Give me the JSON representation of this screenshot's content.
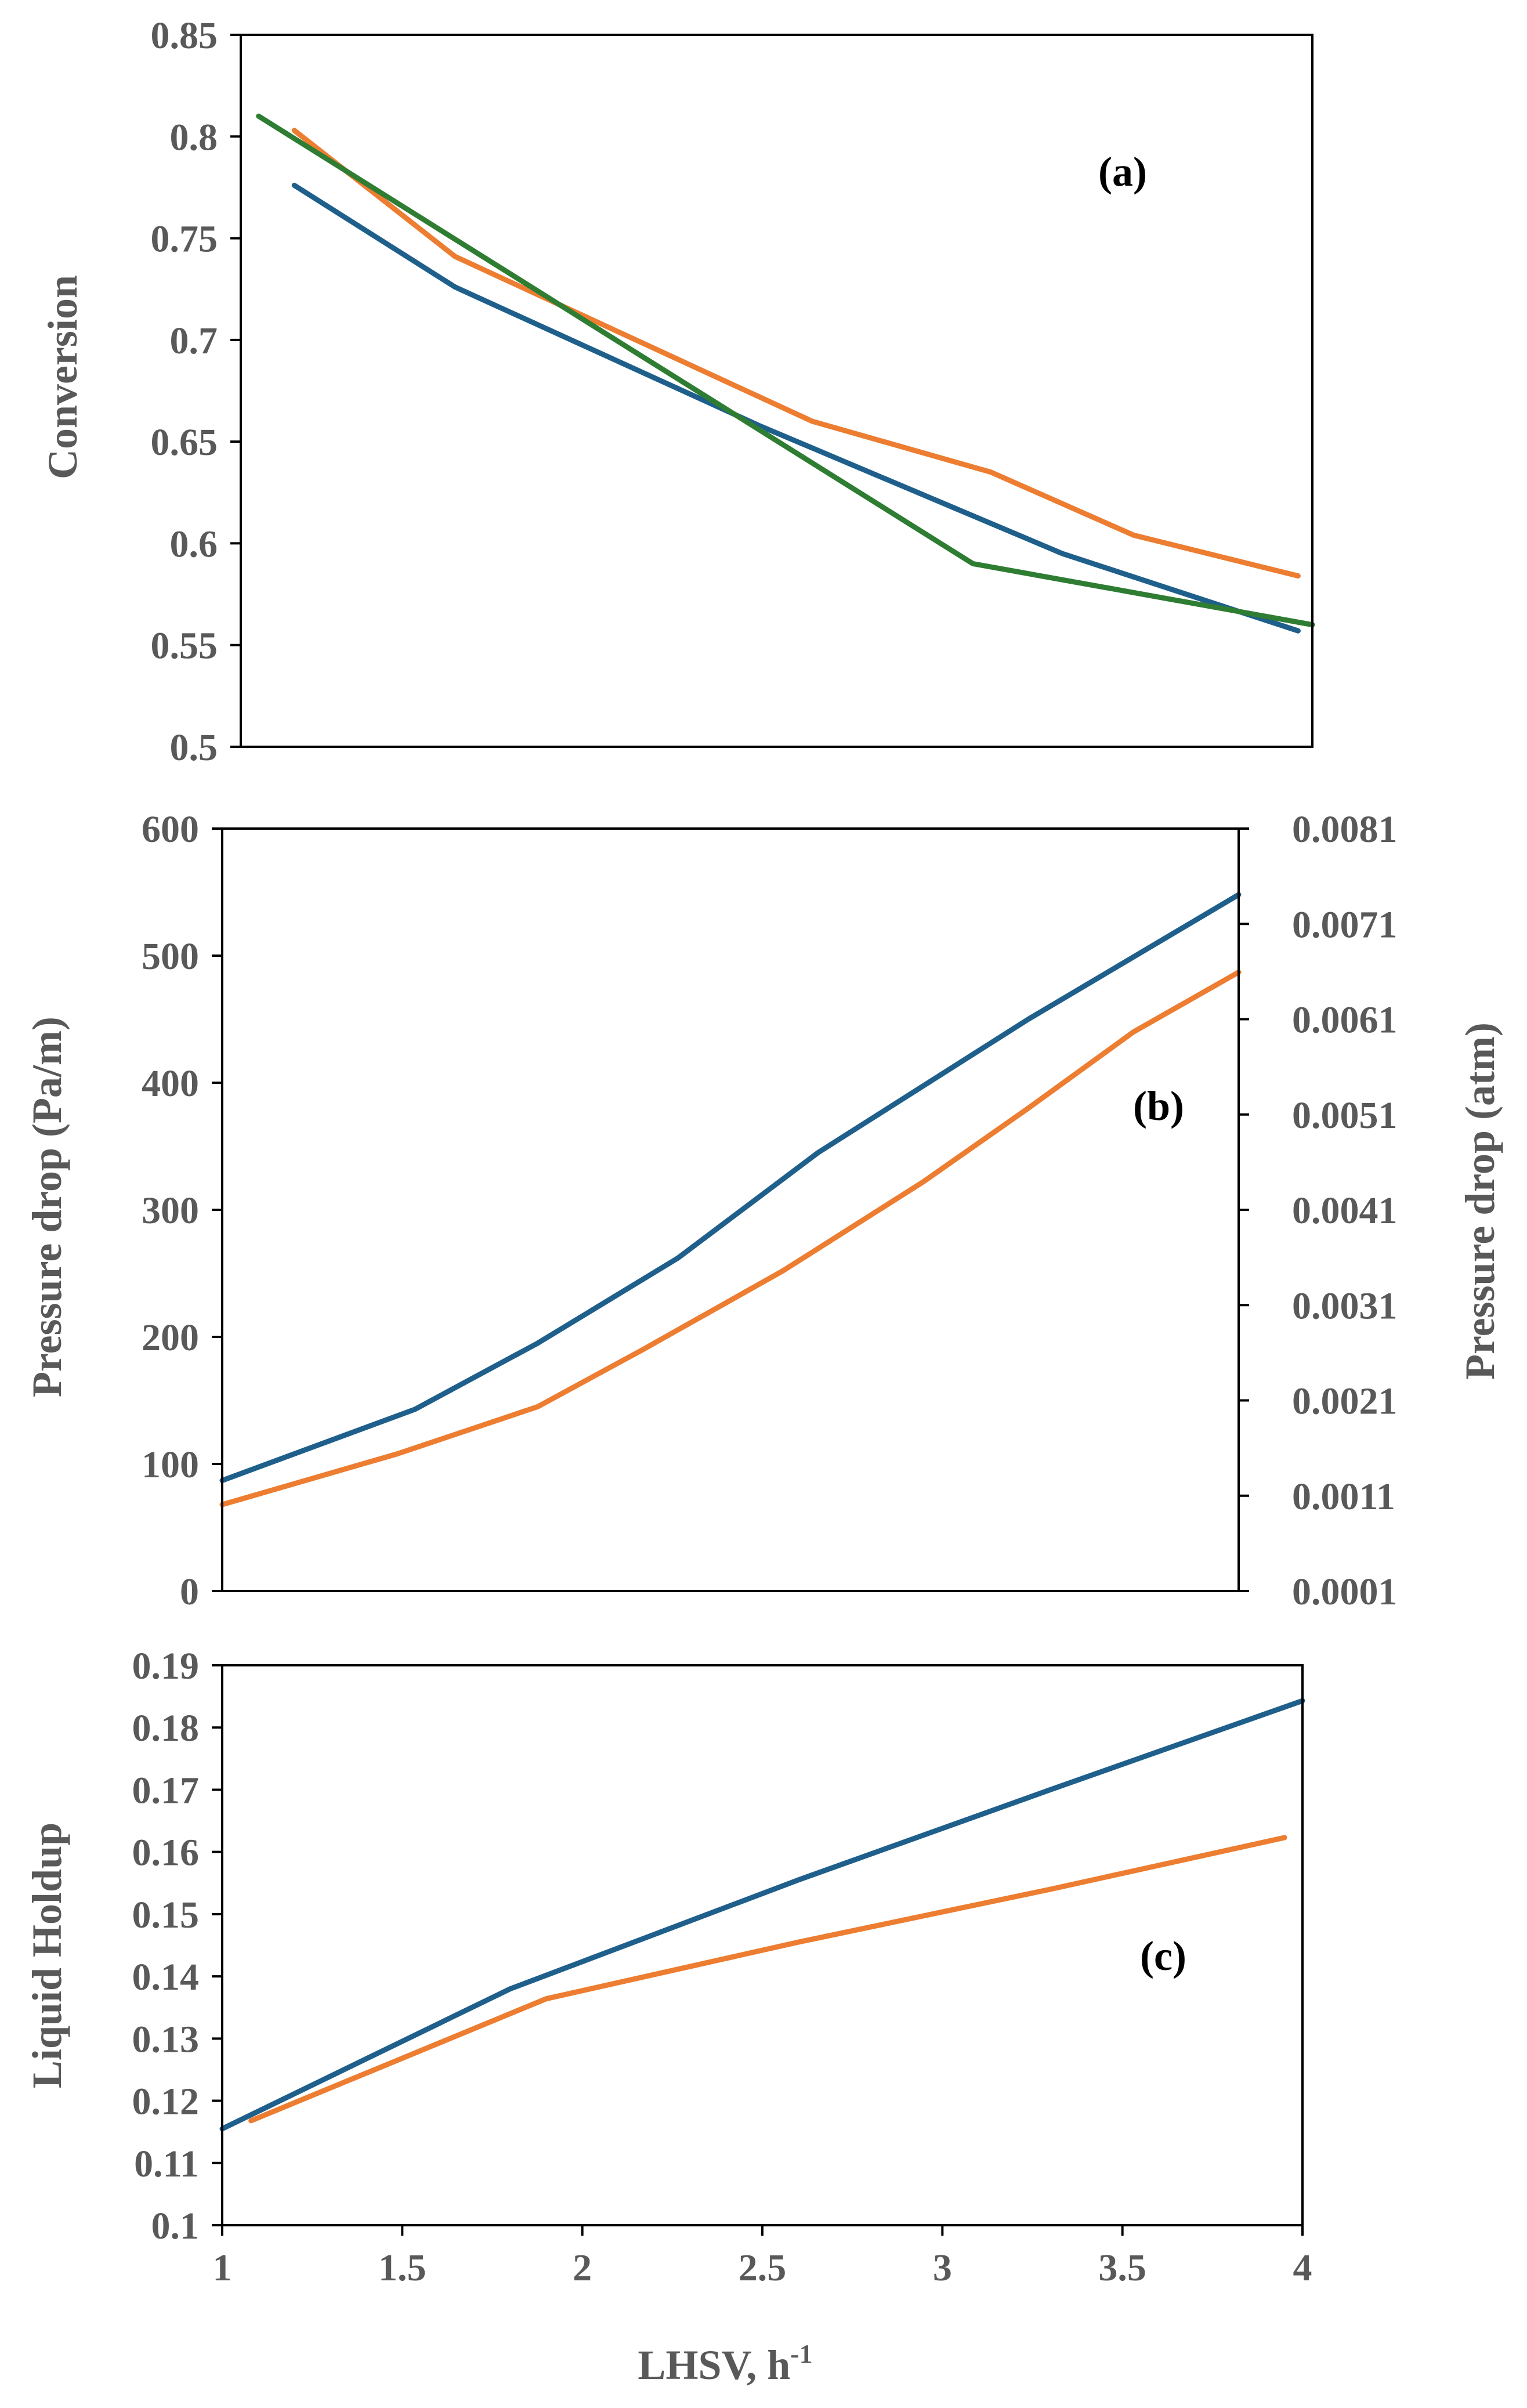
{
  "colors": {
    "blue": "#1f5f8b",
    "orange": "#ed7d31",
    "green": "#2e7d32",
    "axis_text": "#595959"
  },
  "chart_data": [
    {
      "type": "line",
      "panel_label": "(a)",
      "title": "",
      "xlabel": "",
      "ylabel": "Conversion",
      "xlim": [
        1,
        4
      ],
      "ylim": [
        0.5,
        0.85
      ],
      "y_ticks": [
        "0.5",
        "0.55",
        "0.6",
        "0.65",
        "0.7",
        "0.75",
        "0.8",
        "0.85"
      ],
      "x_tick_labels_shown": false,
      "series": [
        {
          "name": "series-1",
          "color": "#1f5f8b",
          "x": [
            1.15,
            1.6,
            2.45,
            3.3,
            3.96
          ],
          "y": [
            0.776,
            0.726,
            0.658,
            0.595,
            0.557
          ]
        },
        {
          "name": "series-2",
          "color": "#ed7d31",
          "x": [
            1.15,
            1.6,
            2.6,
            3.1,
            3.5,
            3.96
          ],
          "y": [
            0.803,
            0.741,
            0.66,
            0.635,
            0.604,
            0.584
          ]
        },
        {
          "name": "series-3",
          "color": "#2e7d32",
          "x": [
            1.05,
            3.05,
            4.0
          ],
          "y": [
            0.81,
            0.59,
            0.56
          ]
        }
      ]
    },
    {
      "type": "line",
      "panel_label": "(b)",
      "title": "",
      "xlabel": "",
      "ylabel": "Pressure drop (Pa/m)",
      "y2label": "Pressure drop (atm)",
      "xlim": [
        1,
        3.9
      ],
      "ylim": [
        0,
        600
      ],
      "y_ticks": [
        "0",
        "100",
        "200",
        "300",
        "400",
        "500",
        "600"
      ],
      "y2_ticks": [
        "0.0001",
        "0.0011",
        "0.0021",
        "0.0031",
        "0.0041",
        "0.0051",
        "0.0061",
        "0.0071",
        "0.0081"
      ],
      "x_tick_labels_shown": false,
      "series": [
        {
          "name": "series-1",
          "color": "#1f5f8b",
          "x": [
            1.0,
            1.55,
            1.9,
            2.3,
            2.7,
            3.3,
            3.9
          ],
          "y": [
            87,
            143,
            195,
            262,
            345,
            450,
            548
          ]
        },
        {
          "name": "series-2",
          "color": "#ed7d31",
          "x": [
            1.0,
            1.5,
            1.9,
            2.2,
            2.6,
            3.0,
            3.3,
            3.6,
            3.9
          ],
          "y": [
            68,
            108,
            145,
            190,
            252,
            322,
            380,
            440,
            487
          ]
        }
      ]
    },
    {
      "type": "line",
      "panel_label": "(c)",
      "title": "",
      "xlabel": "LHSV, h",
      "xlabel_superscript": "-1",
      "ylabel": "Liquid Holdup",
      "xlim": [
        1,
        4
      ],
      "ylim": [
        0.1,
        0.19
      ],
      "y_ticks": [
        "0.1",
        "0.11",
        "0.12",
        "0.13",
        "0.14",
        "0.15",
        "0.16",
        "0.17",
        "0.18",
        "0.19"
      ],
      "x_ticks": [
        "1",
        "1.5",
        "2",
        "2.5",
        "3",
        "3.5",
        "4"
      ],
      "series": [
        {
          "name": "series-1",
          "color": "#1f5f8b",
          "x": [
            1.0,
            1.8,
            2.6,
            3.3,
            4.0
          ],
          "y": [
            0.1155,
            0.138,
            0.1555,
            0.17,
            0.1843
          ]
        },
        {
          "name": "series-2",
          "color": "#ed7d31",
          "x": [
            1.08,
            1.9,
            2.6,
            3.3,
            3.95
          ],
          "y": [
            0.1168,
            0.1364,
            0.1455,
            0.154,
            0.1623
          ]
        }
      ]
    }
  ]
}
